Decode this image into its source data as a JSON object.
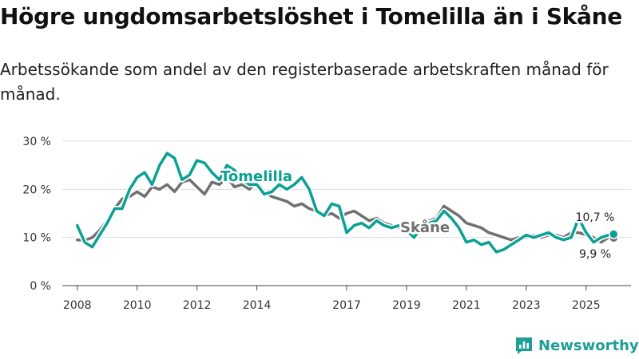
{
  "title": "Högre ungdomsarbetslöshet i Tomelilla än i Skåne",
  "subtitle": "Arbetssökande som andel av den registerbaserade arbetskraften månad för månad.",
  "brand": {
    "name": "Newsworthy"
  },
  "colors": {
    "tomelilla": "#0aa195",
    "skane": "#707070",
    "grid": "#dddddd",
    "axis": "#444444",
    "brand": "#1e9e96"
  },
  "chart_data": {
    "type": "line",
    "title": "Högre ungdomsarbetslöshet i Tomelilla än i Skåne",
    "xlabel": "",
    "ylabel": "",
    "ylim": [
      0,
      30
    ],
    "xlim": [
      2007.5,
      2026.5
    ],
    "yticks": [
      0,
      10,
      20,
      30
    ],
    "ytick_labels": [
      "0 %",
      "10 %",
      "20 %",
      "30 %"
    ],
    "xticks": [
      2008,
      2010,
      2012,
      2014,
      2017,
      2019,
      2021,
      2023,
      2025
    ],
    "xtick_labels": [
      "2008",
      "2010",
      "2012",
      "2014",
      "2017",
      "2019",
      "2021",
      "2023",
      "2025"
    ],
    "grid": true,
    "series": [
      {
        "name": "Skåne",
        "label": "Skåne",
        "color": "#707070",
        "end_label": "9,9 %",
        "x": [
          2008.0,
          2008.25,
          2008.5,
          2008.75,
          2009.0,
          2009.25,
          2009.5,
          2009.75,
          2010.0,
          2010.25,
          2010.5,
          2010.75,
          2011.0,
          2011.25,
          2011.5,
          2011.75,
          2012.0,
          2012.25,
          2012.5,
          2012.75,
          2013.0,
          2013.25,
          2013.5,
          2013.75,
          2014.0,
          2014.25,
          2014.5,
          2014.75,
          2015.0,
          2015.25,
          2015.5,
          2015.75,
          2016.0,
          2016.25,
          2016.5,
          2016.75,
          2017.0,
          2017.25,
          2017.5,
          2017.75,
          2018.0,
          2018.25,
          2018.5,
          2018.75,
          2019.0,
          2019.25,
          2019.5,
          2019.75,
          2020.0,
          2020.25,
          2020.5,
          2020.75,
          2021.0,
          2021.25,
          2021.5,
          2021.75,
          2022.0,
          2022.25,
          2022.5,
          2022.75,
          2023.0,
          2023.25,
          2023.5,
          2023.75,
          2024.0,
          2024.25,
          2024.5,
          2024.75,
          2025.0,
          2025.25,
          2025.5,
          2025.75,
          2025.92
        ],
        "values": [
          9.5,
          9.4,
          10.0,
          11.5,
          13.5,
          16.0,
          18.0,
          18.5,
          19.5,
          18.5,
          20.5,
          20.0,
          21.0,
          19.5,
          21.5,
          22.0,
          20.5,
          19.0,
          21.5,
          21.0,
          22.5,
          20.5,
          21.0,
          20.0,
          21.5,
          19.5,
          18.5,
          18.0,
          17.5,
          16.5,
          17.0,
          16.0,
          15.5,
          14.5,
          15.0,
          14.0,
          15.0,
          15.5,
          14.5,
          13.5,
          14.0,
          13.0,
          12.5,
          12.0,
          12.5,
          11.5,
          12.0,
          13.5,
          14.0,
          16.5,
          15.5,
          14.5,
          13.0,
          12.5,
          12.0,
          11.0,
          10.5,
          10.0,
          9.5,
          10.0,
          10.0,
          10.5,
          10.0,
          10.5,
          10.5,
          10.0,
          11.0,
          11.0,
          10.5,
          10.0,
          9.0,
          10.0,
          9.9
        ]
      },
      {
        "name": "Tomelilla",
        "label": "Tomelilla",
        "color": "#0aa195",
        "end_label": "10,7 %",
        "x": [
          2008.0,
          2008.25,
          2008.5,
          2008.75,
          2009.0,
          2009.25,
          2009.5,
          2009.75,
          2010.0,
          2010.25,
          2010.5,
          2010.75,
          2011.0,
          2011.25,
          2011.5,
          2011.75,
          2012.0,
          2012.25,
          2012.5,
          2012.75,
          2013.0,
          2013.25,
          2013.5,
          2013.75,
          2014.0,
          2014.25,
          2014.5,
          2014.75,
          2015.0,
          2015.25,
          2015.5,
          2015.75,
          2016.0,
          2016.25,
          2016.5,
          2016.75,
          2017.0,
          2017.25,
          2017.5,
          2017.75,
          2018.0,
          2018.25,
          2018.5,
          2018.75,
          2019.0,
          2019.25,
          2019.5,
          2019.75,
          2020.0,
          2020.25,
          2020.5,
          2020.75,
          2021.0,
          2021.25,
          2021.5,
          2021.75,
          2022.0,
          2022.25,
          2022.5,
          2022.75,
          2023.0,
          2023.25,
          2023.5,
          2023.75,
          2024.0,
          2024.25,
          2024.5,
          2024.75,
          2025.0,
          2025.25,
          2025.5,
          2025.75,
          2025.92
        ],
        "values": [
          12.5,
          9.0,
          8.0,
          10.5,
          13.0,
          16.0,
          16.0,
          20.0,
          22.5,
          23.5,
          21.0,
          25.0,
          27.5,
          26.5,
          22.0,
          23.0,
          26.0,
          25.5,
          23.5,
          22.0,
          25.0,
          24.0,
          22.0,
          21.0,
          21.0,
          19.0,
          19.5,
          21.0,
          20.0,
          21.0,
          22.5,
          20.0,
          15.5,
          14.5,
          17.0,
          16.5,
          11.0,
          12.5,
          13.0,
          12.0,
          13.5,
          12.5,
          12.0,
          12.5,
          11.5,
          10.0,
          12.0,
          13.0,
          13.5,
          15.5,
          14.0,
          12.0,
          9.0,
          9.5,
          8.5,
          9.0,
          7.0,
          7.5,
          8.5,
          9.5,
          10.5,
          10.0,
          10.5,
          11.0,
          10.0,
          9.5,
          10.0,
          14.0,
          11.0,
          9.0,
          10.0,
          10.5,
          10.7
        ]
      }
    ]
  }
}
